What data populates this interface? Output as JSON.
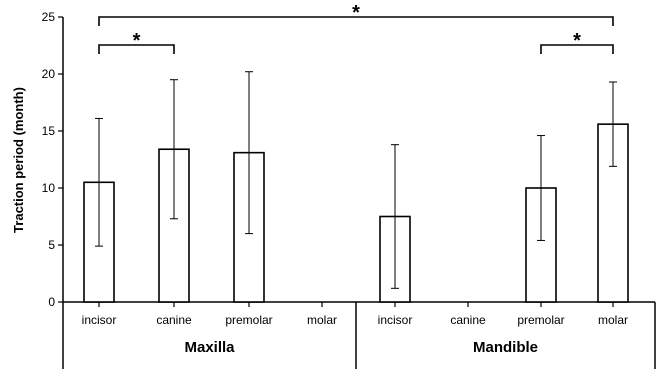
{
  "chart_data": {
    "type": "bar",
    "ylabel": "Traction period (month)",
    "ylim": [
      0,
      25
    ],
    "yticks": [
      0,
      5,
      10,
      15,
      20,
      25
    ],
    "groups": [
      {
        "name": "Maxilla",
        "categories": [
          "incisor",
          "canine",
          "premolar",
          "molar"
        ],
        "values": [
          10.5,
          13.4,
          13.1,
          null
        ],
        "errors": [
          5.6,
          6.1,
          7.1,
          null
        ]
      },
      {
        "name": "Mandible",
        "categories": [
          "incisor",
          "canine",
          "premolar",
          "molar"
        ],
        "values": [
          7.5,
          null,
          10.0,
          15.6
        ],
        "errors": [
          6.3,
          null,
          4.6,
          3.7
        ]
      }
    ],
    "significance": [
      {
        "label": "*",
        "from": [
          0,
          0
        ],
        "to": [
          0,
          1
        ]
      },
      {
        "label": "*",
        "from": [
          1,
          2
        ],
        "to": [
          1,
          3
        ]
      },
      {
        "label": "*",
        "from": [
          0,
          0
        ],
        "to": [
          1,
          3
        ]
      }
    ],
    "grid": false
  }
}
